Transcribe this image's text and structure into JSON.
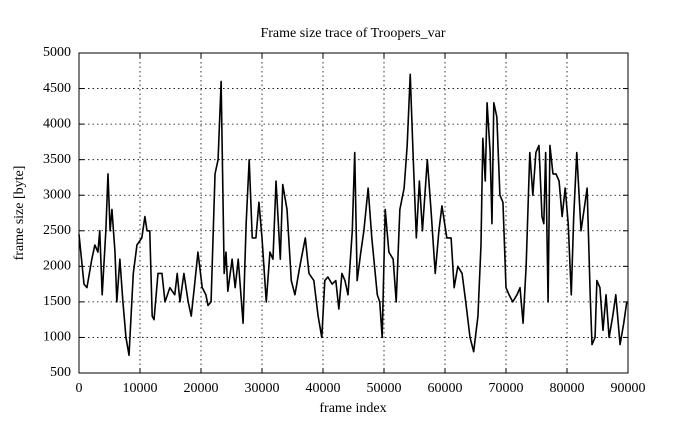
{
  "chart_data": {
    "type": "line",
    "title": "Frame size trace of Troopers_var",
    "xlabel": "frame index",
    "ylabel": "frame size [byte]",
    "xlim": [
      0,
      90000
    ],
    "ylim": [
      500,
      5000
    ],
    "xticks": [
      0,
      10000,
      20000,
      30000,
      40000,
      50000,
      60000,
      70000,
      80000,
      90000
    ],
    "yticks": [
      500,
      1000,
      1500,
      2000,
      2500,
      3000,
      3500,
      4000,
      4500,
      5000
    ],
    "grid": true,
    "series": [
      {
        "color": "#000000",
        "x": [
          0,
          820,
          1300,
          2100,
          2600,
          3100,
          3400,
          3800,
          4400,
          4750,
          5100,
          5400,
          5900,
          6200,
          6700,
          7200,
          7700,
          8200,
          8900,
          9500,
          10300,
          10800,
          11150,
          11600,
          12000,
          12300,
          12950,
          13600,
          14100,
          14900,
          15700,
          16100,
          16550,
          17200,
          17900,
          18400,
          18900,
          19500,
          20200,
          20800,
          21150,
          21650,
          22300,
          22800,
          23300,
          23800,
          24100,
          24400,
          25100,
          25600,
          26100,
          26900,
          27400,
          27900,
          28400,
          29000,
          29500,
          30000,
          30700,
          31300,
          31800,
          32300,
          33000,
          33400,
          34100,
          34800,
          35400,
          36200,
          37100,
          37700,
          38500,
          39200,
          39800,
          40300,
          40800,
          41500,
          42100,
          42600,
          43100,
          43600,
          44100,
          44800,
          45200,
          45600,
          46200,
          46700,
          47400,
          48000,
          48900,
          49300,
          49700,
          50200,
          50800,
          51500,
          52000,
          52600,
          53300,
          53800,
          54300,
          54800,
          55300,
          55800,
          56300,
          57100,
          57700,
          58400,
          59000,
          59500,
          60300,
          61000,
          61500,
          62100,
          62800,
          63400,
          64100,
          64700,
          65400,
          65900,
          66200,
          66600,
          66900,
          67400,
          67700,
          68000,
          68500,
          69000,
          69500,
          70000,
          70500,
          71100,
          71800,
          72300,
          72800,
          73300,
          73900,
          74400,
          74900,
          75400,
          75900,
          76200,
          76500,
          76900,
          77200,
          77700,
          78200,
          78700,
          79200,
          79700,
          80200,
          80700,
          81100,
          81600,
          82300,
          82800,
          83300,
          83800,
          84100,
          84600,
          84900,
          85400,
          85900,
          86400,
          86900,
          87500,
          88000,
          88700,
          89300,
          89800
        ],
        "values": [
          2450,
          1750,
          1700,
          2100,
          2300,
          2200,
          2500,
          1600,
          2500,
          3300,
          2500,
          2800,
          2200,
          1500,
          2100,
          1500,
          1000,
          750,
          1900,
          2300,
          2400,
          2700,
          2500,
          2500,
          1300,
          1250,
          1900,
          1900,
          1500,
          1700,
          1600,
          1900,
          1500,
          1900,
          1500,
          1300,
          1700,
          2200,
          1700,
          1600,
          1450,
          1500,
          3300,
          3500,
          4600,
          1900,
          2200,
          1650,
          2100,
          1700,
          2100,
          1200,
          2600,
          3500,
          2400,
          2400,
          2900,
          2400,
          1500,
          2200,
          2100,
          3200,
          2100,
          3150,
          2800,
          1800,
          1600,
          2000,
          2400,
          1900,
          1800,
          1300,
          1000,
          1800,
          1850,
          1750,
          1800,
          1400,
          1900,
          1800,
          1600,
          2500,
          3600,
          1800,
          2200,
          2500,
          3100,
          2400,
          1600,
          1500,
          1000,
          2800,
          2200,
          2100,
          1500,
          2800,
          3100,
          3700,
          4700,
          3500,
          2400,
          3200,
          2500,
          3500,
          2800,
          1900,
          2500,
          2850,
          2400,
          2400,
          1700,
          2000,
          1900,
          1500,
          1000,
          800,
          1300,
          2300,
          3800,
          3200,
          4300,
          3600,
          2600,
          4300,
          4100,
          3000,
          2900,
          1700,
          1600,
          1500,
          1600,
          1700,
          1200,
          2000,
          3600,
          3000,
          3600,
          3700,
          2700,
          2600,
          3600,
          1500,
          3700,
          3300,
          3300,
          3200,
          2700,
          3100,
          2600,
          1600,
          2700,
          3600,
          2500,
          2800,
          3100,
          1600,
          900,
          1000,
          1800,
          1700,
          1100,
          1600,
          1000,
          1300,
          1600,
          900,
          1200,
          1500
        ]
      }
    ]
  }
}
